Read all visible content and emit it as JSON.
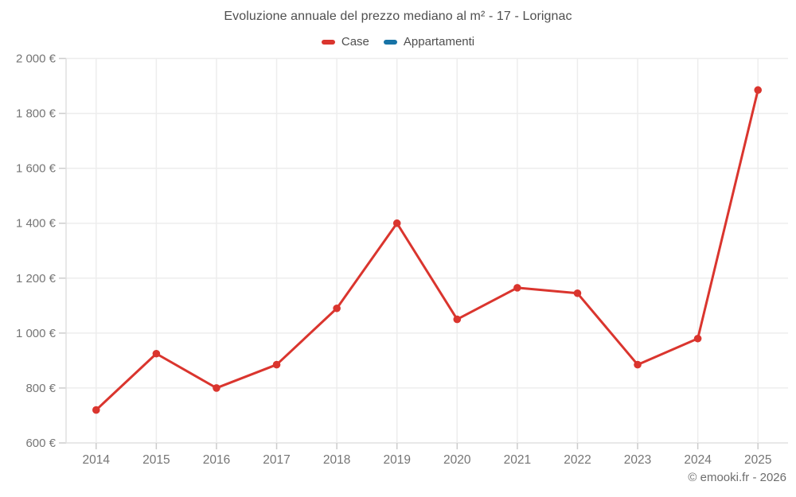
{
  "title": "Evoluzione annuale del prezzo mediano al m² - 17 - Lorignac",
  "footer": "© emooki.fr - 2026",
  "chart_data": {
    "type": "line",
    "title": "Evoluzione annuale del prezzo mediano al m² - 17 - Lorignac",
    "categories": [
      "2014",
      "2015",
      "2016",
      "2017",
      "2018",
      "2019",
      "2020",
      "2021",
      "2022",
      "2023",
      "2024",
      "2025"
    ],
    "series": [
      {
        "name": "Case",
        "color": "#da352e",
        "values": [
          720,
          925,
          800,
          885,
          1090,
          1400,
          1050,
          1165,
          1145,
          885,
          980,
          1885
        ]
      },
      {
        "name": "Appartamenti",
        "color": "#1773a6",
        "values": [
          null,
          null,
          null,
          null,
          null,
          null,
          null,
          null,
          null,
          null,
          null,
          null
        ]
      }
    ],
    "xlabel": "",
    "ylabel": "",
    "ylim": [
      600,
      2000
    ],
    "ytick_step": 200,
    "ytick_labels": [
      "600 €",
      "800 €",
      "1 000 €",
      "1 200 €",
      "1 400 €",
      "1 600 €",
      "1 800 €",
      "2 000 €"
    ],
    "y_suffix": "€",
    "grid": true,
    "legend_position": "top"
  },
  "style": {
    "grid_color": "#ededed",
    "axis_color": "#e0e0e0",
    "tick_color": "#cccccc",
    "label_color": "#757575"
  }
}
